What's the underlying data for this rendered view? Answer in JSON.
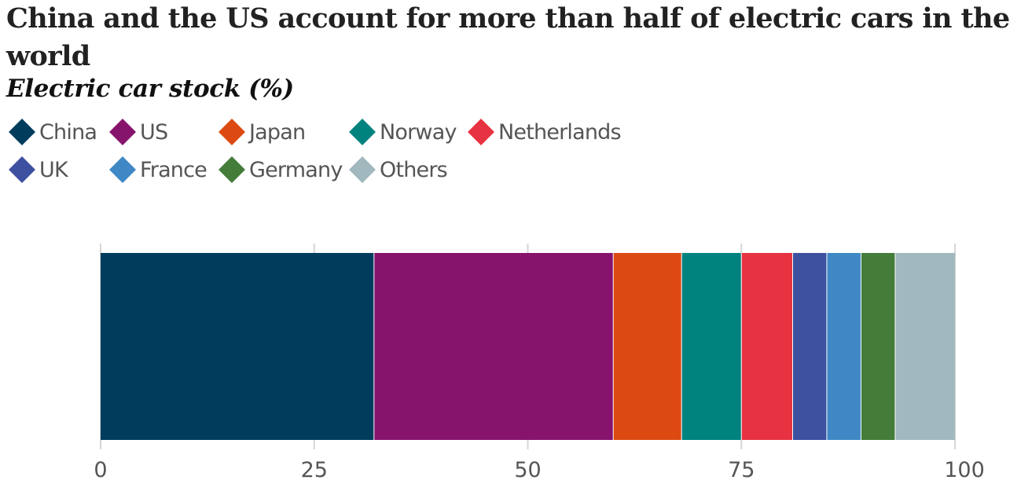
{
  "title": "China and the US account for more than half of electric cars in the world",
  "subtitle": "Electric car stock (%)",
  "legend": [
    {
      "label": "China",
      "color": "#003D5C"
    },
    {
      "label": "US",
      "color": "#86146D"
    },
    {
      "label": "Japan",
      "color": "#DC4A11"
    },
    {
      "label": "Norway",
      "color": "#00837F"
    },
    {
      "label": "Netherlands",
      "color": "#E73241"
    },
    {
      "label": "UK",
      "color": "#3E51A0"
    },
    {
      "label": "France",
      "color": "#3F88C5"
    },
    {
      "label": "Germany",
      "color": "#447C3A"
    },
    {
      "label": "Others",
      "color": "#A0B8BE"
    }
  ],
  "chart_data": {
    "type": "bar",
    "orientation": "horizontal",
    "stacked": true,
    "title": "China and the US account for more than half of electric cars in the world",
    "subtitle": "Electric car stock (%)",
    "categories": [
      ""
    ],
    "series": [
      {
        "name": "China",
        "values": [
          32
        ],
        "color": "#003D5C"
      },
      {
        "name": "US",
        "values": [
          28
        ],
        "color": "#86146D"
      },
      {
        "name": "Japan",
        "values": [
          8
        ],
        "color": "#DC4A11"
      },
      {
        "name": "Norway",
        "values": [
          7
        ],
        "color": "#00837F"
      },
      {
        "name": "Netherlands",
        "values": [
          6
        ],
        "color": "#E73241"
      },
      {
        "name": "UK",
        "values": [
          4
        ],
        "color": "#3E51A0"
      },
      {
        "name": "France",
        "values": [
          4
        ],
        "color": "#3F88C5"
      },
      {
        "name": "Germany",
        "values": [
          4
        ],
        "color": "#447C3A"
      },
      {
        "name": "Others",
        "values": [
          7
        ],
        "color": "#A0B8BE"
      }
    ],
    "xlim": [
      0,
      100
    ],
    "xticks": [
      "0",
      "25",
      "50",
      "75",
      "100"
    ],
    "grid": true,
    "legend_position": "top-left"
  }
}
